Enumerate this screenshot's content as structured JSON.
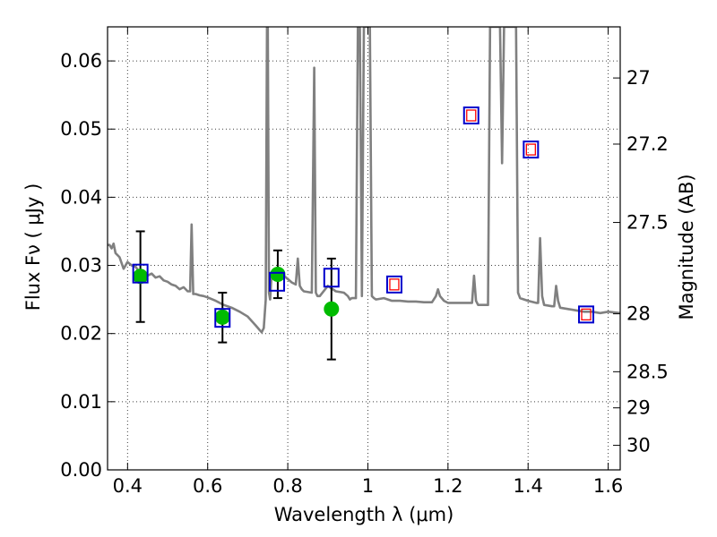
{
  "chart_data": {
    "type": "line",
    "xlabel": "Wavelength  λ (μm)",
    "ylabel": "Flux  Fν  ( μJy )",
    "y2label": "Magnitude (AB)",
    "xlim": [
      0.35,
      1.63
    ],
    "ylim": [
      0.0,
      0.065
    ],
    "grid": true,
    "x_ticks": [
      0.4,
      0.6,
      0.8,
      1.0,
      1.2,
      1.4,
      1.6
    ],
    "x_tick_labels": [
      "0.4",
      "0.6",
      "0.8",
      "1",
      "1.2",
      "1.4",
      "1.6"
    ],
    "y_ticks": [
      0.0,
      0.01,
      0.02,
      0.03,
      0.04,
      0.05,
      0.06
    ],
    "y_tick_labels": [
      "0.00",
      "0.01",
      "0.02",
      "0.03",
      "0.04",
      "0.05",
      "0.06"
    ],
    "y2_ticks": [
      {
        "label": "27",
        "flux": 0.0575
      },
      {
        "label": "27.2",
        "flux": 0.0478
      },
      {
        "label": "27.5",
        "flux": 0.0363
      },
      {
        "label": "28",
        "flux": 0.0229
      },
      {
        "label": "28.5",
        "flux": 0.0144
      },
      {
        "label": "29",
        "flux": 0.0091
      },
      {
        "label": "30",
        "flux": 0.0036
      }
    ],
    "series": [
      {
        "style": "model-sed",
        "color": "#808080",
        "x": [
          0.35,
          0.355,
          0.36,
          0.365,
          0.37,
          0.38,
          0.39,
          0.4,
          0.41,
          0.42,
          0.43,
          0.44,
          0.45,
          0.46,
          0.47,
          0.48,
          0.49,
          0.5,
          0.51,
          0.52,
          0.53,
          0.54,
          0.55,
          0.556,
          0.56,
          0.564,
          0.57,
          0.58,
          0.59,
          0.6,
          0.62,
          0.64,
          0.66,
          0.68,
          0.7,
          0.72,
          0.73,
          0.735,
          0.74,
          0.745,
          0.748,
          0.75,
          0.753,
          0.756,
          0.76,
          0.77,
          0.78,
          0.79,
          0.8,
          0.81,
          0.82,
          0.825,
          0.83,
          0.835,
          0.84,
          0.86,
          0.866,
          0.87,
          0.874,
          0.88,
          0.9,
          0.92,
          0.94,
          0.95,
          0.955,
          0.96,
          0.97,
          0.975,
          0.98,
          0.985,
          0.99,
          0.995,
          1.0,
          1.005,
          1.01,
          1.015,
          1.02,
          1.04,
          1.06,
          1.08,
          1.1,
          1.12,
          1.14,
          1.16,
          1.17,
          1.175,
          1.18,
          1.19,
          1.2,
          1.22,
          1.24,
          1.26,
          1.265,
          1.27,
          1.275,
          1.28,
          1.3,
          1.305,
          1.31,
          1.32,
          1.33,
          1.335,
          1.34,
          1.345,
          1.35,
          1.36,
          1.37,
          1.375,
          1.38,
          1.4,
          1.42,
          1.425,
          1.43,
          1.435,
          1.44,
          1.46,
          1.465,
          1.47,
          1.475,
          1.48,
          1.5,
          1.52,
          1.54,
          1.56,
          1.58,
          1.6,
          1.63
        ],
        "y": [
          0.033,
          0.033,
          0.0325,
          0.0332,
          0.0318,
          0.0312,
          0.0295,
          0.0305,
          0.03,
          0.0298,
          0.029,
          0.0292,
          0.0285,
          0.0288,
          0.0282,
          0.0284,
          0.0278,
          0.0276,
          0.0272,
          0.027,
          0.0265,
          0.0268,
          0.0262,
          0.0262,
          0.036,
          0.0258,
          0.0258,
          0.0256,
          0.0255,
          0.0253,
          0.0248,
          0.0242,
          0.0238,
          0.0232,
          0.0225,
          0.0212,
          0.0205,
          0.0202,
          0.0208,
          0.025,
          0.065,
          0.065,
          0.026,
          0.025,
          0.029,
          0.0288,
          0.0282,
          0.0285,
          0.028,
          0.0275,
          0.0272,
          0.031,
          0.027,
          0.0265,
          0.0262,
          0.026,
          0.059,
          0.026,
          0.0255,
          0.0255,
          0.027,
          0.0262,
          0.026,
          0.0255,
          0.025,
          0.0252,
          0.0252,
          0.065,
          0.065,
          0.0255,
          0.065,
          0.065,
          0.065,
          0.065,
          0.0255,
          0.0252,
          0.025,
          0.0252,
          0.0248,
          0.0248,
          0.0247,
          0.0247,
          0.0246,
          0.0246,
          0.0255,
          0.0265,
          0.0255,
          0.0248,
          0.0245,
          0.0245,
          0.0245,
          0.0245,
          0.0285,
          0.0248,
          0.0242,
          0.0242,
          0.0242,
          0.065,
          0.065,
          0.065,
          0.065,
          0.045,
          0.065,
          0.065,
          0.065,
          0.065,
          0.065,
          0.026,
          0.0252,
          0.0248,
          0.0245,
          0.0245,
          0.034,
          0.0255,
          0.0242,
          0.024,
          0.024,
          0.027,
          0.0248,
          0.0238,
          0.0236,
          0.0234,
          0.0232,
          0.0232,
          0.023,
          0.0232,
          0.023
        ]
      },
      {
        "style": "observed",
        "color": "#00bb00",
        "x": [
          0.432,
          0.637,
          0.775,
          0.909
        ],
        "y": [
          0.0284,
          0.0224,
          0.0287,
          0.0236
        ],
        "yerr_low": [
          0.0217,
          0.0187,
          0.0252,
          0.0162
        ],
        "yerr_high": [
          0.035,
          0.026,
          0.0322,
          0.031
        ]
      },
      {
        "style": "model-bandpass",
        "color": "#0000cc",
        "x": [
          0.432,
          0.637,
          0.773,
          0.909
        ],
        "y": [
          0.0288,
          0.0223,
          0.0276,
          0.0282
        ]
      },
      {
        "style": "model-bandpass-ir",
        "color": "#0000cc",
        "inner_color": "#ff0000",
        "x": [
          1.066,
          1.258,
          1.407,
          1.545
        ],
        "y": [
          0.0272,
          0.052,
          0.047,
          0.0228
        ]
      }
    ]
  }
}
